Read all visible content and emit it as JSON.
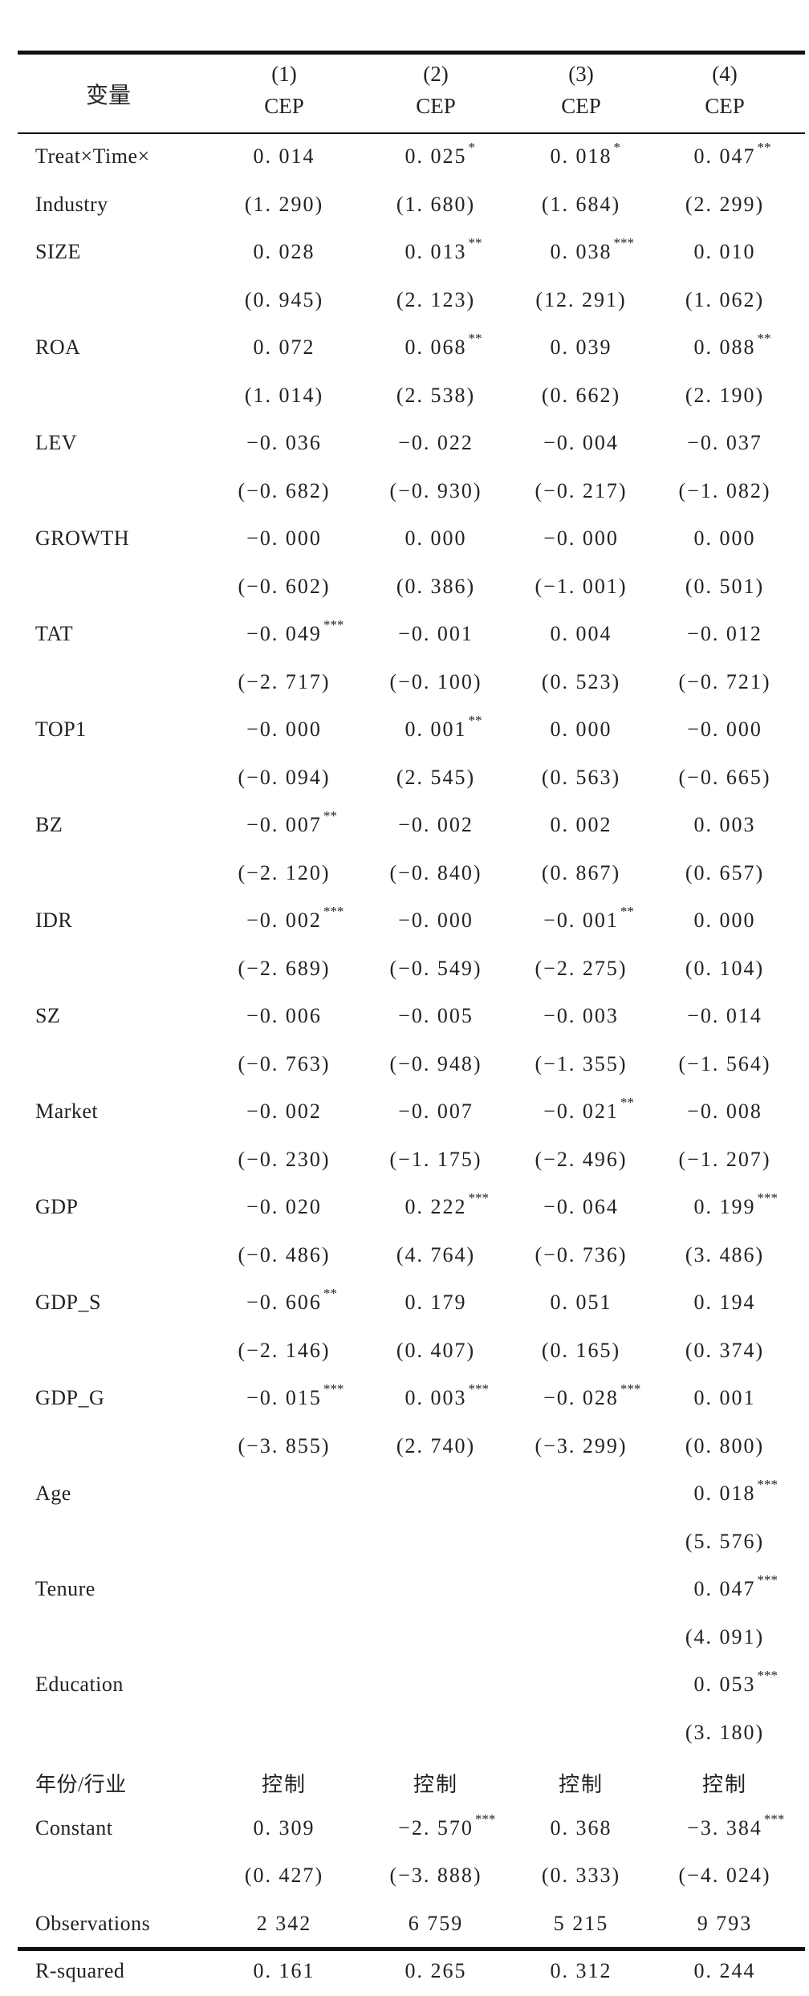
{
  "header": {
    "variable_label": "变量",
    "columns": [
      {
        "num": "(1)",
        "dep": "CEP"
      },
      {
        "num": "(2)",
        "dep": "CEP"
      },
      {
        "num": "(3)",
        "dep": "CEP"
      },
      {
        "num": "(4)",
        "dep": "CEP"
      }
    ]
  },
  "rows": [
    {
      "label": "Treat×Time×",
      "cells": [
        [
          "0. 014",
          ""
        ],
        [
          "0. 025",
          "*"
        ],
        [
          "0. 018",
          "*"
        ],
        [
          "0. 047",
          "**"
        ]
      ]
    },
    {
      "label": "Industry",
      "cells": [
        [
          "(1. 290)",
          ""
        ],
        [
          "(1. 680)",
          ""
        ],
        [
          "(1. 684)",
          ""
        ],
        [
          "(2. 299)",
          ""
        ]
      ]
    },
    {
      "label": "SIZE",
      "cells": [
        [
          "0. 028",
          ""
        ],
        [
          "0. 013",
          "**"
        ],
        [
          "0. 038",
          "***"
        ],
        [
          "0. 010",
          ""
        ]
      ]
    },
    {
      "label": "",
      "cells": [
        [
          "(0. 945)",
          ""
        ],
        [
          "(2. 123)",
          ""
        ],
        [
          "(12. 291)",
          ""
        ],
        [
          "(1. 062)",
          ""
        ]
      ]
    },
    {
      "label": "ROA",
      "cells": [
        [
          "0. 072",
          ""
        ],
        [
          "0. 068",
          "**"
        ],
        [
          "0. 039",
          ""
        ],
        [
          "0. 088",
          "**"
        ]
      ]
    },
    {
      "label": "",
      "cells": [
        [
          "(1. 014)",
          ""
        ],
        [
          "(2. 538)",
          ""
        ],
        [
          "(0. 662)",
          ""
        ],
        [
          "(2. 190)",
          ""
        ]
      ]
    },
    {
      "label": "LEV",
      "cells": [
        [
          "−0. 036",
          ""
        ],
        [
          "−0. 022",
          ""
        ],
        [
          "−0. 004",
          ""
        ],
        [
          "−0. 037",
          ""
        ]
      ]
    },
    {
      "label": "",
      "cells": [
        [
          "(−0. 682)",
          ""
        ],
        [
          "(−0. 930)",
          ""
        ],
        [
          "(−0. 217)",
          ""
        ],
        [
          "(−1. 082)",
          ""
        ]
      ]
    },
    {
      "label": "GROWTH",
      "cells": [
        [
          "−0. 000",
          ""
        ],
        [
          "0. 000",
          ""
        ],
        [
          "−0. 000",
          ""
        ],
        [
          "0. 000",
          ""
        ]
      ]
    },
    {
      "label": "",
      "cells": [
        [
          "(−0. 602)",
          ""
        ],
        [
          "(0. 386)",
          ""
        ],
        [
          "(−1. 001)",
          ""
        ],
        [
          "(0. 501)",
          ""
        ]
      ]
    },
    {
      "label": "TAT",
      "cells": [
        [
          "−0. 049",
          "***"
        ],
        [
          "−0. 001",
          ""
        ],
        [
          "0. 004",
          ""
        ],
        [
          "−0. 012",
          ""
        ]
      ]
    },
    {
      "label": "",
      "cells": [
        [
          "(−2. 717)",
          ""
        ],
        [
          "(−0. 100)",
          ""
        ],
        [
          "(0. 523)",
          ""
        ],
        [
          "(−0. 721)",
          ""
        ]
      ]
    },
    {
      "label": "TOP1",
      "cells": [
        [
          "−0. 000",
          ""
        ],
        [
          "0. 001",
          "**"
        ],
        [
          "0. 000",
          ""
        ],
        [
          "−0. 000",
          ""
        ]
      ]
    },
    {
      "label": "",
      "cells": [
        [
          "(−0. 094)",
          ""
        ],
        [
          "(2. 545)",
          ""
        ],
        [
          "(0. 563)",
          ""
        ],
        [
          "(−0. 665)",
          ""
        ]
      ]
    },
    {
      "label": "BZ",
      "cells": [
        [
          "−0. 007",
          "**"
        ],
        [
          "−0. 002",
          ""
        ],
        [
          "0. 002",
          ""
        ],
        [
          "0. 003",
          ""
        ]
      ]
    },
    {
      "label": "",
      "cells": [
        [
          "(−2. 120)",
          ""
        ],
        [
          "(−0. 840)",
          ""
        ],
        [
          "(0. 867)",
          ""
        ],
        [
          "(0. 657)",
          ""
        ]
      ]
    },
    {
      "label": "IDR",
      "cells": [
        [
          "−0. 002",
          "***"
        ],
        [
          "−0. 000",
          ""
        ],
        [
          "−0. 001",
          "**"
        ],
        [
          "0. 000",
          ""
        ]
      ]
    },
    {
      "label": "",
      "cells": [
        [
          "(−2. 689)",
          ""
        ],
        [
          "(−0. 549)",
          ""
        ],
        [
          "(−2. 275)",
          ""
        ],
        [
          "(0. 104)",
          ""
        ]
      ]
    },
    {
      "label": "SZ",
      "cells": [
        [
          "−0. 006",
          ""
        ],
        [
          "−0. 005",
          ""
        ],
        [
          "−0. 003",
          ""
        ],
        [
          "−0. 014",
          ""
        ]
      ]
    },
    {
      "label": "",
      "cells": [
        [
          "(−0. 763)",
          ""
        ],
        [
          "(−0. 948)",
          ""
        ],
        [
          "(−1. 355)",
          ""
        ],
        [
          "(−1. 564)",
          ""
        ]
      ]
    },
    {
      "label": "Market",
      "cells": [
        [
          "−0. 002",
          ""
        ],
        [
          "−0. 007",
          ""
        ],
        [
          "−0. 021",
          "**"
        ],
        [
          "−0. 008",
          ""
        ]
      ]
    },
    {
      "label": "",
      "cells": [
        [
          "(−0. 230)",
          ""
        ],
        [
          "(−1. 175)",
          ""
        ],
        [
          "(−2. 496)",
          ""
        ],
        [
          "(−1. 207)",
          ""
        ]
      ]
    },
    {
      "label": "GDP",
      "cells": [
        [
          "−0. 020",
          ""
        ],
        [
          "0. 222",
          "***"
        ],
        [
          "−0. 064",
          ""
        ],
        [
          "0. 199",
          "***"
        ]
      ]
    },
    {
      "label": "",
      "cells": [
        [
          "(−0. 486)",
          ""
        ],
        [
          "(4. 764)",
          ""
        ],
        [
          "(−0. 736)",
          ""
        ],
        [
          "(3. 486)",
          ""
        ]
      ]
    },
    {
      "label": "GDP_S",
      "cells": [
        [
          "−0. 606",
          "**"
        ],
        [
          "0. 179",
          ""
        ],
        [
          "0. 051",
          ""
        ],
        [
          "0. 194",
          ""
        ]
      ]
    },
    {
      "label": "",
      "cells": [
        [
          "(−2. 146)",
          ""
        ],
        [
          "(0. 407)",
          ""
        ],
        [
          "(0. 165)",
          ""
        ],
        [
          "(0. 374)",
          ""
        ]
      ]
    },
    {
      "label": "GDP_G",
      "cells": [
        [
          "−0. 015",
          "***"
        ],
        [
          "0. 003",
          "***"
        ],
        [
          "−0. 028",
          "***"
        ],
        [
          "0. 001",
          ""
        ]
      ]
    },
    {
      "label": "",
      "cells": [
        [
          "(−3. 855)",
          ""
        ],
        [
          "(2. 740)",
          ""
        ],
        [
          "(−3. 299)",
          ""
        ],
        [
          "(0. 800)",
          ""
        ]
      ]
    },
    {
      "label": "Age",
      "cells": [
        [
          "",
          ""
        ],
        [
          "",
          ""
        ],
        [
          "",
          ""
        ],
        [
          "0. 018",
          "***"
        ]
      ]
    },
    {
      "label": "",
      "cells": [
        [
          "",
          ""
        ],
        [
          "",
          ""
        ],
        [
          "",
          ""
        ],
        [
          "(5. 576)",
          ""
        ]
      ]
    },
    {
      "label": "Tenure",
      "cells": [
        [
          "",
          ""
        ],
        [
          "",
          ""
        ],
        [
          "",
          ""
        ],
        [
          "0. 047",
          "***"
        ]
      ]
    },
    {
      "label": "",
      "cells": [
        [
          "",
          ""
        ],
        [
          "",
          ""
        ],
        [
          "",
          ""
        ],
        [
          "(4. 091)",
          ""
        ]
      ]
    },
    {
      "label": "Education",
      "cells": [
        [
          "",
          ""
        ],
        [
          "",
          ""
        ],
        [
          "",
          ""
        ],
        [
          "0. 053",
          "***"
        ]
      ]
    },
    {
      "label": "",
      "cells": [
        [
          "",
          ""
        ],
        [
          "",
          ""
        ],
        [
          "",
          ""
        ],
        [
          "(3. 180)",
          ""
        ]
      ]
    },
    {
      "label": "年份/行业",
      "cells": [
        [
          "控制",
          ""
        ],
        [
          "控制",
          ""
        ],
        [
          "控制",
          ""
        ],
        [
          "控制",
          ""
        ]
      ]
    },
    {
      "label": "Constant",
      "cells": [
        [
          "0. 309",
          ""
        ],
        [
          "−2. 570",
          "***"
        ],
        [
          "0. 368",
          ""
        ],
        [
          "−3. 384",
          "***"
        ]
      ]
    },
    {
      "label": "",
      "cells": [
        [
          "(0. 427)",
          ""
        ],
        [
          "(−3. 888)",
          ""
        ],
        [
          "(0. 333)",
          ""
        ],
        [
          "(−4. 024)",
          ""
        ]
      ]
    },
    {
      "label": "Observations",
      "cells": [
        [
          "2 342",
          ""
        ],
        [
          "6 759",
          ""
        ],
        [
          "5 215",
          ""
        ],
        [
          "9 793",
          ""
        ]
      ]
    },
    {
      "label": "R-squared",
      "cells": [
        [
          "0. 161",
          ""
        ],
        [
          "0. 265",
          ""
        ],
        [
          "0. 312",
          ""
        ],
        [
          "0. 244",
          ""
        ]
      ]
    }
  ]
}
